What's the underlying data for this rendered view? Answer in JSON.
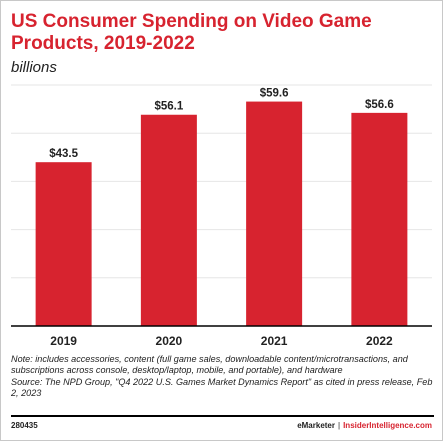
{
  "title": "US Consumer Spending on Video Game Products, 2019-2022",
  "subtitle": "billions",
  "note": "Note: includes accessories, content (full game sales, downloadable content/microtransactions, and subscriptions across console, desktop/laptop, mobile, and portable), and hardware",
  "source": "Source: The NPD Group, \"Q4 2022 U.S. Games Market Dynamics Report\" as cited in press release, Feb 2, 2023",
  "footer": {
    "id": "280435",
    "brand": "eMarketer",
    "separator": "|",
    "site": "InsiderIntelligence.com"
  },
  "colors": {
    "bar": "#d7232f",
    "title": "#d7232f",
    "gridline": "#e6e6e6",
    "axis": "#000000"
  },
  "chart_data": {
    "type": "bar",
    "categories": [
      "2019",
      "2020",
      "2021",
      "2022"
    ],
    "values": [
      43.5,
      56.1,
      59.6,
      56.6
    ],
    "data_labels": [
      "$43.5",
      "$56.1",
      "$59.6",
      "$56.6"
    ],
    "ylim": [
      0,
      64
    ],
    "grid": true,
    "legend": "none"
  }
}
